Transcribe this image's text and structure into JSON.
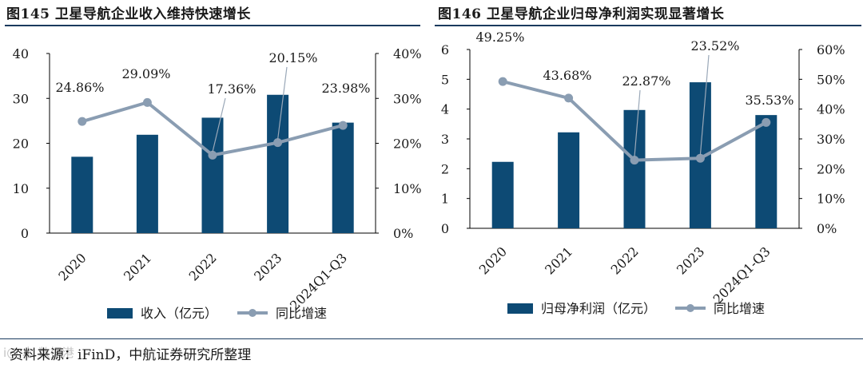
{
  "left": {
    "title": "图145  卫星导航企业收入维持快速增长",
    "chart_data": {
      "type": "bar+line",
      "categories": [
        "2020",
        "2021",
        "2022",
        "2023",
        "2024Q1-Q3"
      ],
      "bar_series": {
        "name": "收入（亿元）",
        "values": [
          17.0,
          21.9,
          25.7,
          30.8,
          24.6
        ],
        "color": "#0d4a74"
      },
      "line_series": {
        "name": "同比增速",
        "values": [
          24.86,
          29.09,
          17.36,
          20.15,
          23.98
        ],
        "labels": [
          "24.86%",
          "29.09%",
          "17.36%",
          "20.15%",
          "23.98%"
        ],
        "color": "#8a9db2"
      },
      "y_left": {
        "min": 0,
        "max": 40,
        "ticks": [
          "0",
          "10",
          "20",
          "30",
          "40"
        ]
      },
      "y_right": {
        "min": 0,
        "max": 40,
        "ticks": [
          "0%",
          "10%",
          "20%",
          "30%",
          "40%"
        ]
      }
    }
  },
  "right": {
    "title": "图146  卫星导航企业归母净利润实现显著增长",
    "chart_data": {
      "type": "bar+line",
      "categories": [
        "2020",
        "2021",
        "2022",
        "2023",
        "2024Q1-Q3"
      ],
      "bar_series": {
        "name": "归母净利润（亿元）",
        "values": [
          2.23,
          3.22,
          3.97,
          4.9,
          3.8
        ],
        "color": "#0d4a74"
      },
      "line_series": {
        "name": "同比增速",
        "values": [
          49.25,
          43.68,
          22.87,
          23.52,
          35.53
        ],
        "labels": [
          "49.25%",
          "43.68%",
          "22.87%",
          "23.52%",
          "35.53%"
        ],
        "color": "#8a9db2"
      },
      "y_left": {
        "min": 0,
        "max": 6,
        "ticks": [
          "0",
          "1",
          "2",
          "3",
          "4",
          "5",
          "6"
        ]
      },
      "y_right": {
        "min": 0,
        "max": 60,
        "ticks": [
          "0%",
          "10%",
          "20%",
          "30%",
          "40%",
          "50%",
          "60%"
        ]
      }
    }
  },
  "source": "资料来源：iFinD，中航证券研究所整理",
  "watermark": "i@ 本 数据港"
}
